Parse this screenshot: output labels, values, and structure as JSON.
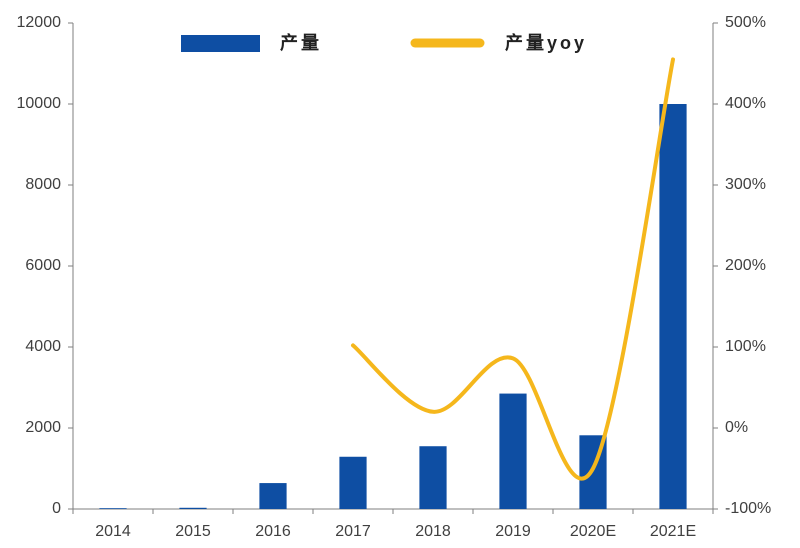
{
  "chart_data": {
    "type": "bar-line",
    "categories": [
      "2014",
      "2015",
      "2016",
      "2017",
      "2018",
      "2019",
      "2020E",
      "2021E"
    ],
    "series": [
      {
        "name": "产量",
        "type": "bar",
        "color": "#0e4ea3",
        "values": [
          20,
          30,
          640,
          1290,
          1550,
          2850,
          1820,
          10000
        ]
      },
      {
        "name": "产量yoy",
        "type": "line",
        "axis": "y2",
        "color": "#f5b71c",
        "values": [
          null,
          null,
          null,
          102,
          20,
          86,
          -50,
          455
        ]
      }
    ],
    "ylim": [
      0,
      12000
    ],
    "yticks": [
      0,
      2000,
      4000,
      6000,
      8000,
      10000,
      12000
    ],
    "y2lim": [
      -100,
      500
    ],
    "y2ticks": [
      {
        "value": -100,
        "label": "-100%"
      },
      {
        "value": 0,
        "label": "0%"
      },
      {
        "value": 100,
        "label": "100%"
      },
      {
        "value": 200,
        "label": "200%"
      },
      {
        "value": 300,
        "label": "300%"
      },
      {
        "value": 400,
        "label": "400%"
      },
      {
        "value": 500,
        "label": "500%"
      }
    ],
    "grid": false,
    "legend": "top"
  }
}
